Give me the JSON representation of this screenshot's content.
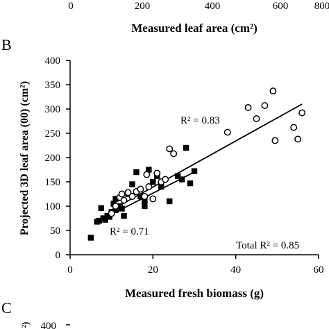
{
  "top_partial": {
    "tick_labels": [
      "0",
      "200",
      "400",
      "600",
      "800"
    ],
    "xlabel": "Measured leaf area (cm²)"
  },
  "panel_b": {
    "panel_label": "B",
    "xlabel": "Measured fresh biomass (g)",
    "ylabel": "Projected 3D leaf area (00) (cm²)",
    "r2_upper": "R² = 0.83",
    "r2_lower": "R² = 0.71",
    "r2_total": "Total R² = 0.85"
  },
  "bottom_partial": {
    "panel_label": "C",
    "tick_label": "400",
    "ylabel_fragment": "²)"
  },
  "chart_data": {
    "type": "scatter",
    "xlabel": "Measured fresh biomass (g)",
    "ylabel": "Projected 3D leaf area (00) (cm²)",
    "xlim": [
      0,
      60
    ],
    "ylim": [
      0,
      400
    ],
    "x_ticks": [
      0,
      20,
      40,
      60
    ],
    "y_ticks": [
      0,
      50,
      100,
      150,
      200,
      250,
      300,
      350,
      400
    ],
    "grid": false,
    "series": [
      {
        "marker": "filled-square",
        "color": "#000000",
        "points": [
          [
            5,
            35
          ],
          [
            6.5,
            68
          ],
          [
            7,
            70
          ],
          [
            7.5,
            96
          ],
          [
            8,
            75
          ],
          [
            8.5,
            72
          ],
          [
            9,
            80
          ],
          [
            9.5,
            78
          ],
          [
            10,
            88
          ],
          [
            10.5,
            105
          ],
          [
            11,
            92
          ],
          [
            11,
            115
          ],
          [
            12,
            100
          ],
          [
            12.5,
            95
          ],
          [
            13,
            80
          ],
          [
            14,
            125
          ],
          [
            15,
            145
          ],
          [
            16,
            170
          ],
          [
            17,
            120
          ],
          [
            18,
            110
          ],
          [
            18,
            100
          ],
          [
            19,
            175
          ],
          [
            20,
            150
          ],
          [
            21,
            162
          ],
          [
            22,
            140
          ],
          [
            24,
            110
          ],
          [
            26,
            162
          ],
          [
            27,
            155
          ],
          [
            28,
            220
          ],
          [
            29,
            147
          ],
          [
            30,
            172
          ]
        ],
        "trendline": [
          [
            6.5,
            68
          ],
          [
            29.5,
            168
          ]
        ],
        "r2": 0.71
      },
      {
        "marker": "open-circle",
        "color": "#000000",
        "points": [
          [
            10,
            85
          ],
          [
            11,
            100
          ],
          [
            12,
            118
          ],
          [
            12.5,
            125
          ],
          [
            13,
            112
          ],
          [
            14,
            128
          ],
          [
            15,
            120
          ],
          [
            16,
            130
          ],
          [
            17,
            135
          ],
          [
            18,
            120
          ],
          [
            18.5,
            165
          ],
          [
            19,
            140
          ],
          [
            20,
            115
          ],
          [
            21,
            168
          ],
          [
            22,
            150
          ],
          [
            23,
            155
          ],
          [
            24,
            218
          ],
          [
            25,
            208
          ],
          [
            38,
            252
          ],
          [
            43,
            303
          ],
          [
            45,
            280
          ],
          [
            47,
            307
          ],
          [
            49,
            337
          ],
          [
            49.5,
            235
          ],
          [
            54,
            262
          ],
          [
            55,
            238
          ],
          [
            56,
            292
          ]
        ],
        "trendline": [
          [
            10,
            92
          ],
          [
            56,
            310
          ]
        ],
        "r2": 0.83
      }
    ],
    "total_r2": 0.85
  }
}
